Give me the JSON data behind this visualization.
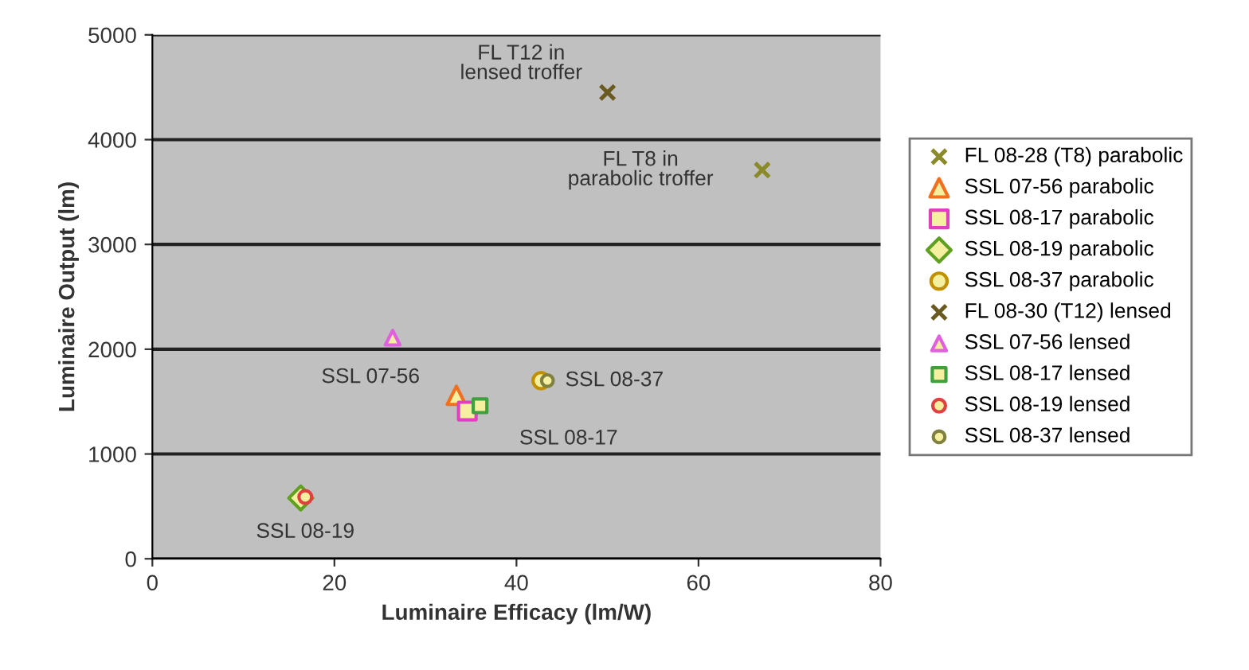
{
  "chart_data": {
    "type": "scatter",
    "xlabel": "Luminaire Efficacy (lm/W)",
    "ylabel": "Luminaire Output (lm)",
    "xlim": [
      0,
      80
    ],
    "xticks": [
      0,
      20,
      40,
      60,
      80
    ],
    "ylim": [
      0,
      5000
    ],
    "yticks": [
      0,
      1000,
      2000,
      3000,
      4000,
      5000
    ],
    "grid": "y",
    "legend": "right",
    "series": [
      {
        "name": "FL 08-28 (T8) parabolic",
        "color": "#8a8a2a",
        "marker": "cross",
        "x": [
          67
        ],
        "values": [
          3710
        ]
      },
      {
        "name": "SSL 07-56 parabolic",
        "color": "#f07020",
        "marker": "triangle",
        "x": [
          33.4
        ],
        "values": [
          1560
        ]
      },
      {
        "name": "SSL 08-17 parabolic",
        "color": "#e040c0",
        "marker": "square",
        "x": [
          34.6
        ],
        "values": [
          1410
        ]
      },
      {
        "name": "SSL 08-19 parabolic",
        "color": "#60a020",
        "marker": "diamond",
        "x": [
          16.3
        ],
        "values": [
          580
        ]
      },
      {
        "name": "SSL 08-37 parabolic",
        "color": "#c09000",
        "marker": "circle",
        "x": [
          42.7
        ],
        "values": [
          1700
        ]
      },
      {
        "name": "FL 08-30 (T12) lensed",
        "color": "#6a5a20",
        "marker": "cross",
        "x": [
          50
        ],
        "values": [
          4450
        ]
      },
      {
        "name": "SSL 07-56 lensed",
        "color": "#e060e0",
        "marker": "triangle",
        "x": [
          26.4
        ],
        "values": [
          2110
        ]
      },
      {
        "name": "SSL 08-17 lensed",
        "color": "#40a040",
        "marker": "square",
        "x": [
          36.0
        ],
        "values": [
          1460
        ]
      },
      {
        "name": "SSL 08-19 lensed",
        "color": "#e04040",
        "marker": "circle",
        "x": [
          16.8
        ],
        "values": [
          590
        ]
      },
      {
        "name": "SSL 08-37 lensed",
        "color": "#808040",
        "marker": "circle",
        "x": [
          43.4
        ],
        "values": [
          1700
        ]
      }
    ],
    "annotations": [
      {
        "text": "FL T12 in\nlensed troffer",
        "x": 50,
        "y": 4450
      },
      {
        "text": "FL T8 in\nparabolic troffer",
        "x": 67,
        "y": 3710
      },
      {
        "text": "SSL 07-56",
        "x": 26.4,
        "y": 2110
      },
      {
        "text": "SSL 08-37",
        "x": 43.4,
        "y": 1700
      },
      {
        "text": "SSL 08-17",
        "x": 36.0,
        "y": 1460
      },
      {
        "text": "SSL 08-19",
        "x": 16.8,
        "y": 590
      }
    ]
  }
}
